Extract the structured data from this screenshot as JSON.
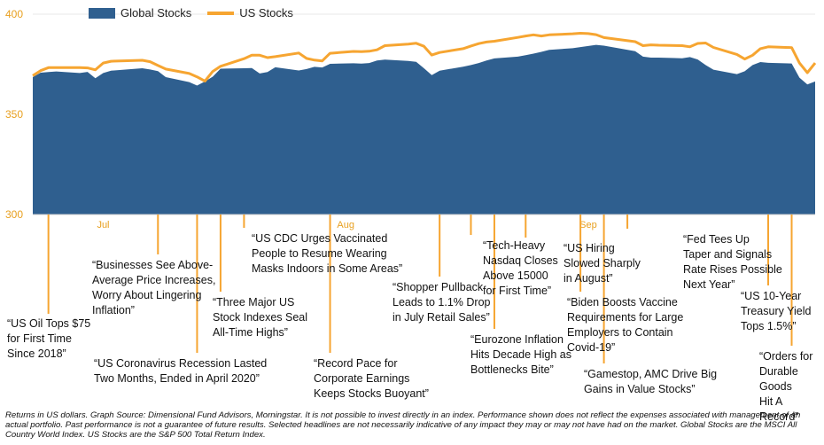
{
  "legend": {
    "area_label": "Global Stocks",
    "line_label": "US Stocks"
  },
  "colors": {
    "global_area": "#2f5f8f",
    "us_line": "#f6a531",
    "axis_text": "#e8a020",
    "leader": "#f6a531"
  },
  "chart_data": {
    "type": "area",
    "title": "",
    "xlabel": "",
    "ylabel": "",
    "ylim": [
      300,
      400
    ],
    "yticks": [
      300,
      350,
      400
    ],
    "xtick_labels": [
      "Jul",
      "Aug",
      "Sep"
    ],
    "x": [
      "2021-06-22",
      "2021-06-23",
      "2021-06-24",
      "2021-06-25",
      "2021-06-28",
      "2021-06-29",
      "2021-06-30",
      "2021-07-01",
      "2021-07-02",
      "2021-07-06",
      "2021-07-07",
      "2021-07-08",
      "2021-07-09",
      "2021-07-12",
      "2021-07-13",
      "2021-07-14",
      "2021-07-15",
      "2021-07-16",
      "2021-07-19",
      "2021-07-20",
      "2021-07-21",
      "2021-07-22",
      "2021-07-23",
      "2021-07-26",
      "2021-07-27",
      "2021-07-28",
      "2021-07-29",
      "2021-07-30",
      "2021-08-02",
      "2021-08-03",
      "2021-08-04",
      "2021-08-05",
      "2021-08-06",
      "2021-08-09",
      "2021-08-10",
      "2021-08-11",
      "2021-08-12",
      "2021-08-13",
      "2021-08-16",
      "2021-08-17",
      "2021-08-18",
      "2021-08-19",
      "2021-08-20",
      "2021-08-23",
      "2021-08-24",
      "2021-08-25",
      "2021-08-26",
      "2021-08-27",
      "2021-08-30",
      "2021-08-31",
      "2021-09-01",
      "2021-09-02",
      "2021-09-03",
      "2021-09-07",
      "2021-09-08",
      "2021-09-09",
      "2021-09-10",
      "2021-09-13",
      "2021-09-14",
      "2021-09-15",
      "2021-09-16",
      "2021-09-17",
      "2021-09-20",
      "2021-09-21",
      "2021-09-22",
      "2021-09-23",
      "2021-09-24",
      "2021-09-27",
      "2021-09-28",
      "2021-09-29",
      "2021-09-30"
    ],
    "series": [
      {
        "name": "Global Stocks",
        "type": "area",
        "values": [
          368.6,
          370.8,
          371.1,
          371.4,
          370.6,
          371.2,
          368.0,
          370.6,
          371.8,
          373.0,
          372.4,
          371.6,
          368.6,
          366.1,
          364.4,
          366.4,
          368.8,
          372.8,
          373.0,
          373.1,
          370.4,
          371.1,
          373.5,
          371.9,
          372.6,
          373.7,
          373.4,
          375.2,
          375.5,
          375.3,
          375.6,
          376.9,
          377.3,
          376.7,
          376.2,
          373.0,
          369.6,
          371.8,
          373.8,
          374.6,
          375.6,
          376.9,
          377.9,
          378.8,
          379.5,
          380.3,
          381.2,
          382.2,
          383.0,
          383.6,
          384.1,
          384.7,
          384.3,
          381.5,
          378.8,
          378.3,
          378.3,
          378.0,
          378.6,
          377.4,
          374.6,
          372.3,
          370.1,
          371.5,
          374.6,
          376.1,
          375.7,
          375.4,
          368.3,
          364.9,
          366.4
        ]
      },
      {
        "name": "US Stocks",
        "type": "line",
        "values": [
          369.3,
          371.8,
          373.3,
          373.3,
          373.3,
          373.2,
          372.2,
          375.6,
          376.5,
          377.0,
          376.3,
          374.4,
          372.6,
          370.4,
          368.7,
          366.6,
          371.4,
          374.0,
          377.8,
          379.5,
          379.5,
          378.3,
          378.8,
          380.6,
          377.9,
          377.1,
          376.7,
          380.5,
          381.4,
          381.3,
          381.5,
          382.2,
          384.3,
          385.1,
          385.5,
          384.0,
          379.6,
          380.9,
          382.8,
          384.1,
          385.3,
          386.1,
          386.5,
          388.4,
          389.1,
          389.7,
          389.1,
          389.7,
          390.2,
          390.5,
          390.3,
          389.8,
          388.3,
          386.3,
          384.3,
          384.7,
          384.5,
          384.3,
          383.7,
          385.4,
          385.6,
          383.4,
          379.9,
          377.6,
          379.5,
          382.8,
          383.7,
          383.3,
          375.6,
          370.8,
          375.6
        ]
      }
    ],
    "annotations": [
      {
        "date": "2021-06-24",
        "lines": [
          "“US Oil Tops $75",
          "for First Time",
          "Since 2018”"
        ]
      },
      {
        "date": "2021-07-13",
        "lines": [
          "“US Coronavirus Recession Lasted",
          "Two Months, Ended in April 2020”"
        ]
      },
      {
        "date": "2021-07-08",
        "lines": [
          "“Businesses See Above-",
          "Average Price Increases,",
          "Worry About Lingering",
          "Inflation”"
        ]
      },
      {
        "date": "2021-07-16",
        "lines": [
          "“Three Major US",
          "Stock Indexes Seal",
          "All-Time Highs”"
        ]
      },
      {
        "date": "2021-07-19",
        "lines": [
          "“US CDC Urges Vaccinated",
          "People to Resume Wearing",
          "Masks Indoors in Some Areas”"
        ]
      },
      {
        "date": "2021-07-30",
        "lines": [
          "“Record Pace for",
          "Corporate Earnings",
          "Keeps Stocks Buoyant”"
        ]
      },
      {
        "date": "2021-08-13",
        "lines": [
          "“Shopper Pullback",
          "Leads to 1.1% Drop",
          "in July Retail Sales”"
        ]
      },
      {
        "date": "2021-08-17",
        "lines": [
          "“Tech-Heavy",
          "Nasdaq Closes",
          "Above 15000",
          "for First Time”"
        ]
      },
      {
        "date": "2021-08-20",
        "lines": [
          "“Eurozone Inflation",
          "Hits Decade High as",
          "Bottlenecks Bite”"
        ]
      },
      {
        "date": "2021-08-24",
        "lines": [
          "“US Hiring",
          "Slowed Sharply",
          "in August”"
        ]
      },
      {
        "date": "2021-08-31",
        "lines": [
          "“Biden Boosts Vaccine",
          "Requirements for Large",
          "Employers to Contain",
          "Covid-19”"
        ]
      },
      {
        "date": "2021-09-03",
        "lines": [
          "“Gamestop, AMC Drive Big",
          "Gains in Value Stocks”"
        ]
      },
      {
        "date": "2021-09-06",
        "lines": [
          "“Fed Tees Up",
          "Taper and Signals",
          "Rate Rises Possible",
          "Next Year”"
        ]
      },
      {
        "date": "2021-09-24",
        "lines": [
          "“US 10-Year",
          "Treasury Yield",
          "Tops 1.5%”"
        ]
      },
      {
        "date": "2021-09-27",
        "lines": [
          "“Orders for",
          "Durable Goods",
          "Hit A Record”"
        ]
      }
    ]
  },
  "footnote": "Returns in US dollars. Graph Source: Dimensional Fund Advisors, Morningstar. It is not possible to invest directly in an index. Performance shown does not reflect the expenses associated with management of an actual portfolio. Past performance is not a guarantee of future results. Selected headlines are not necessarily indicative of any impact they may or may not have had on the market. Global Stocks are the MSCI All Country World Index. US Stocks are the S&P 500 Total Return Index."
}
